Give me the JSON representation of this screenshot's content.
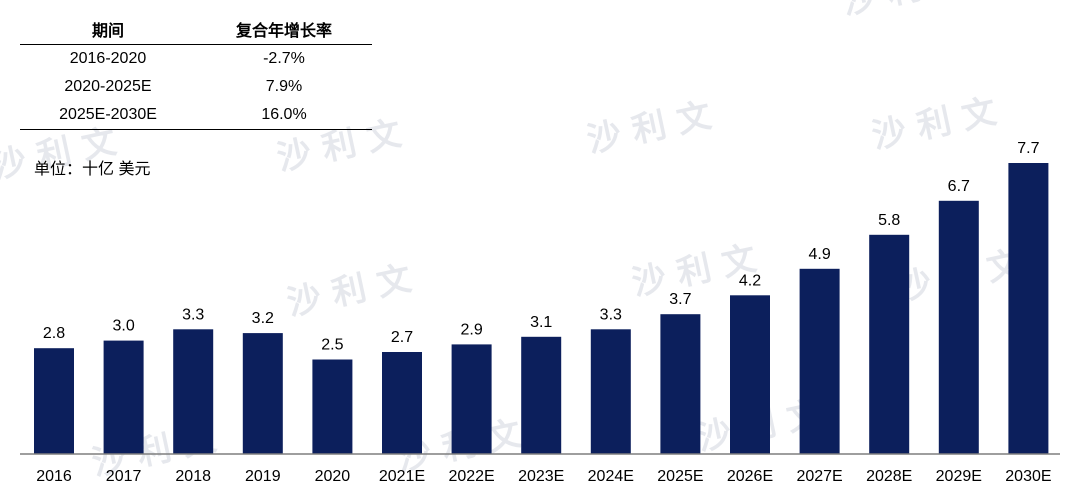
{
  "table": {
    "headers": [
      "期间",
      "复合年增长率"
    ],
    "rows": [
      [
        "2016-2020",
        "-2.7%"
      ],
      [
        "2020-2025E",
        "7.9%"
      ],
      [
        "2025E-2030E",
        "16.0%"
      ]
    ]
  },
  "unit_label": "单位：十亿 美元",
  "watermark": {
    "text": "沙 利 文",
    "color": "#c9ced8"
  },
  "colors": {
    "bar": "#0c1f5c",
    "axis": "#7f7f7f"
  },
  "chart_data": {
    "type": "bar",
    "categories": [
      "2016",
      "2017",
      "2018",
      "2019",
      "2020",
      "2021E",
      "2022E",
      "2023E",
      "2024E",
      "2025E",
      "2026E",
      "2027E",
      "2028E",
      "2029E",
      "2030E"
    ],
    "values": [
      2.8,
      3.0,
      3.3,
      3.2,
      2.5,
      2.7,
      2.9,
      3.1,
      3.3,
      3.7,
      4.2,
      4.9,
      5.8,
      6.7,
      7.7
    ],
    "value_labels": [
      "2.8",
      "3.0",
      "3.3",
      "3.2",
      "2.5",
      "2.7",
      "2.9",
      "3.1",
      "3.3",
      "3.7",
      "4.2",
      "4.9",
      "5.8",
      "6.7",
      "7.7"
    ],
    "ylim": [
      0,
      7.7
    ],
    "grid": false,
    "legend": "none"
  }
}
